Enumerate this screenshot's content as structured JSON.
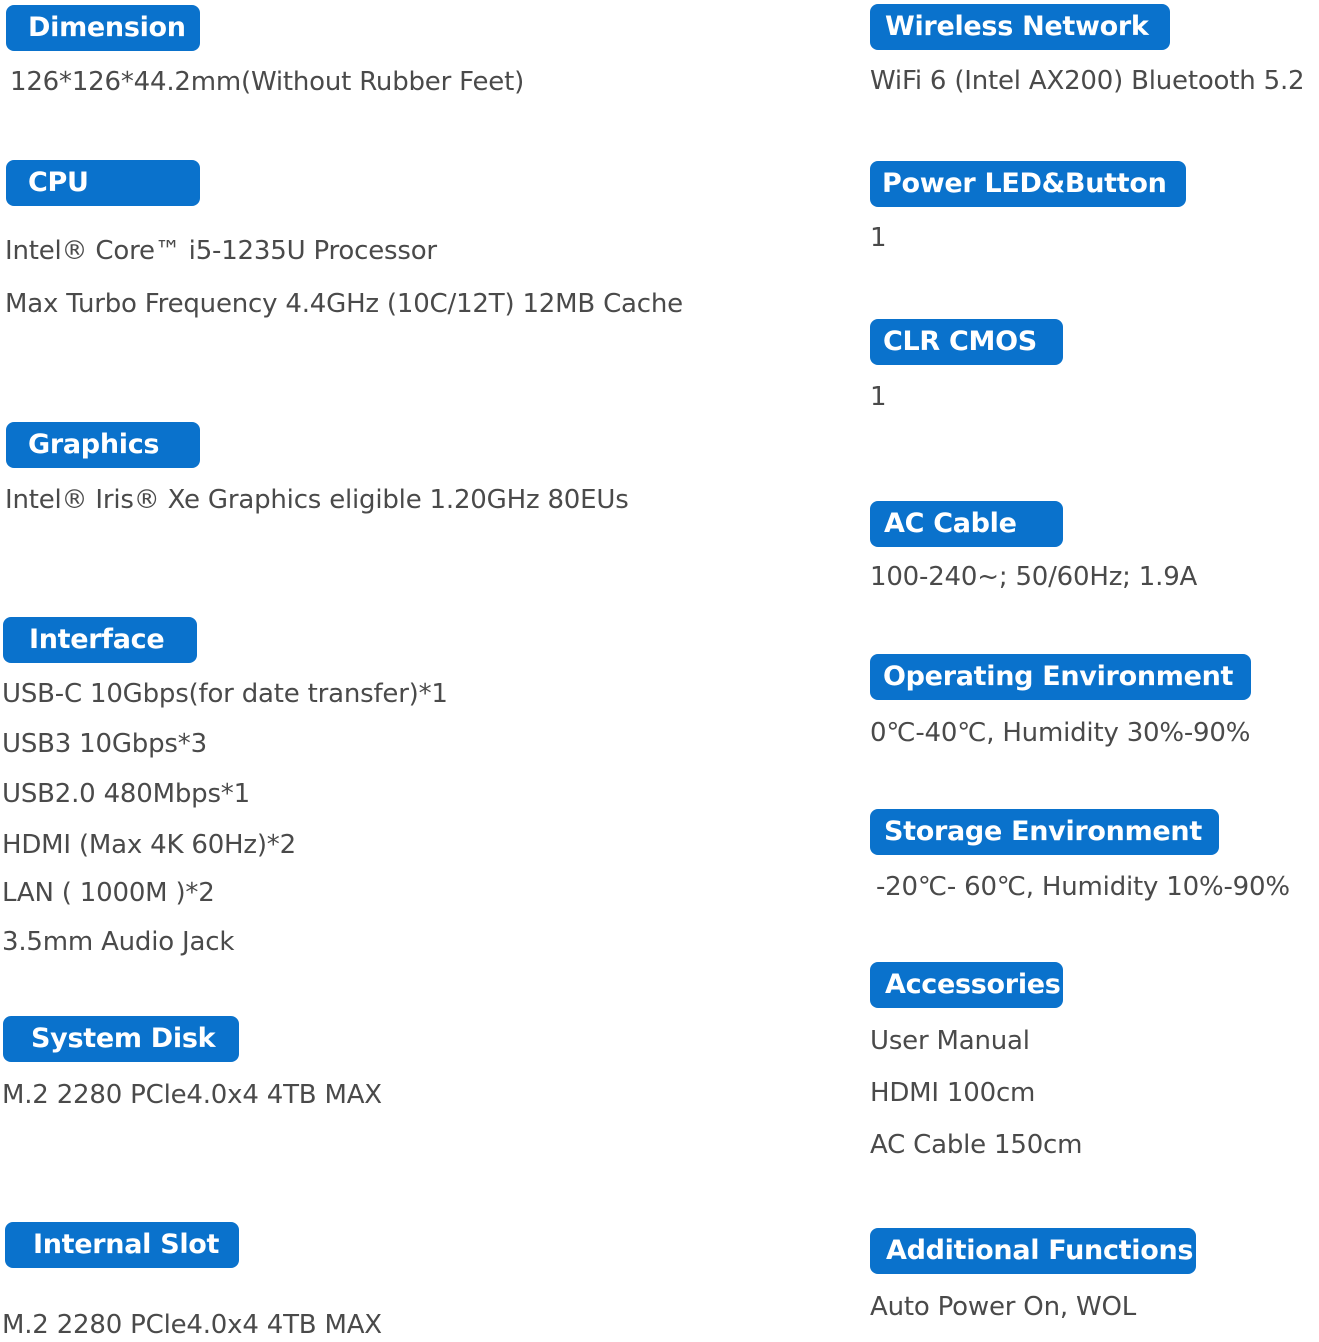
{
  "left": [
    {
      "title": "Dimension",
      "lines": [
        "126*126*44.2mm(Without Rubber Feet)"
      ]
    },
    {
      "title": "CPU",
      "lines": [
        "Intel® Core™ i5-1235U Processor",
        "Max Turbo Frequency 4.4GHz (10C/12T) 12MB Cache"
      ]
    },
    {
      "title": "Graphics",
      "lines": [
        "Intel® Iris® Xe Graphics eligible 1.20GHz 80EUs"
      ]
    },
    {
      "title": "Interface",
      "lines": [
        "USB-C 10Gbps(for date transfer)*1",
        "USB3 10Gbps*3",
        "USB2.0  480Mbps*1",
        "HDMI (Max 4K 60Hz)*2",
        "LAN ( 1000M )*2",
        "3.5mm Audio Jack"
      ]
    },
    {
      "title": "System Disk",
      "lines": [
        "M.2 2280 PCle4.0x4 4TB MAX"
      ]
    },
    {
      "title": "Internal Slot",
      "lines": [
        "M.2 2280 PCle4.0x4 4TB MAX"
      ]
    }
  ],
  "right": [
    {
      "title": "Wireless Network",
      "lines": [
        "WiFi 6 (Intel AX200) Bluetooth 5.2"
      ]
    },
    {
      "title": "Power LED&Button",
      "lines": [
        "1"
      ]
    },
    {
      "title": "CLR CMOS",
      "lines": [
        "1"
      ]
    },
    {
      "title": "AC Cable",
      "lines": [
        "100-240~;  50/60Hz;  1.9A"
      ]
    },
    {
      "title": "Operating Environment",
      "lines": [
        "0℃-40℃, Humidity 30%-90%"
      ]
    },
    {
      "title": "Storage Environment",
      "lines": [
        "-20℃- 60℃, Humidity 10%-90%"
      ]
    },
    {
      "title": "Accessories",
      "lines": [
        "User Manual",
        "HDMI 100cm",
        "AC Cable 150cm"
      ]
    },
    {
      "title": "Additional Functions",
      "lines": [
        "Auto Power On, WOL"
      ]
    }
  ],
  "colors": {
    "badge": "#0a72cc",
    "text": "#4a4a4a"
  }
}
